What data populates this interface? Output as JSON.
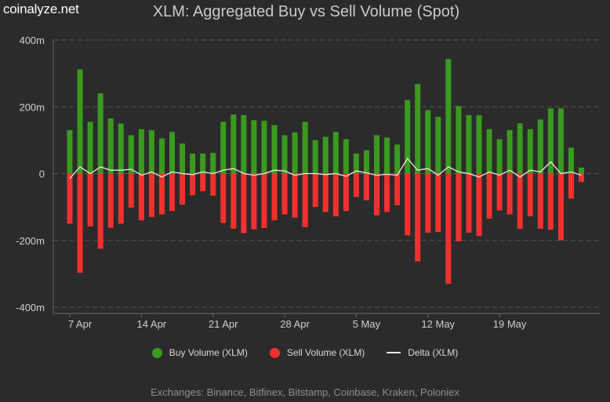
{
  "brand": "coinalyze.net",
  "title": "XLM: Aggregated Buy vs Sell Volume (Spot)",
  "legend": {
    "buy": "Buy Volume (XLM)",
    "sell": "Sell Volume (XLM)",
    "delta": "Delta (XLM)"
  },
  "footer": "Exchanges: Binance, Bitfinex, Bitstamp, Coinbase, Kraken, Poloniex",
  "colors": {
    "buy": "#3a9a1e",
    "sell": "#f2312f",
    "delta": "#e8e8e8",
    "grid": "#555555",
    "background": "#2b2b2b"
  },
  "chart_data": {
    "type": "bar",
    "title": "XLM: Aggregated Buy vs Sell Volume (Spot)",
    "ylim": [
      -400,
      400
    ],
    "yticks": [
      400,
      200,
      0,
      -200,
      -400
    ],
    "ytick_labels": [
      "400m",
      "200m",
      "0",
      "-200m",
      "-400m"
    ],
    "xtick_labels": [
      "7 Apr",
      "14 Apr",
      "21 Apr",
      "28 Apr",
      "5 May",
      "12 May",
      "19 May"
    ],
    "xtick_index": [
      0,
      7,
      14,
      21,
      28,
      35,
      42
    ],
    "first_date": "2024-04-06",
    "grid": true,
    "legend_position": "bottom",
    "series": [
      {
        "name": "Buy Volume (XLM)",
        "values": [
          130,
          312,
          155,
          240,
          165,
          150,
          115,
          133,
          130,
          105,
          125,
          90,
          60,
          60,
          62,
          155,
          177,
          175,
          160,
          158,
          145,
          115,
          123,
          155,
          100,
          110,
          125,
          103,
          60,
          70,
          115,
          108,
          87,
          220,
          268,
          190,
          170,
          343,
          202,
          175,
          175,
          133,
          103,
          130,
          150,
          133,
          162,
          195,
          195,
          78,
          18
        ]
      },
      {
        "name": "Sell Volume (XLM)",
        "values": [
          -150,
          -297,
          -158,
          -225,
          -162,
          -150,
          -102,
          -140,
          -130,
          -122,
          -112,
          -93,
          -65,
          -53,
          -66,
          -148,
          -165,
          -178,
          -167,
          -163,
          -140,
          -122,
          -132,
          -160,
          -100,
          -115,
          -128,
          -112,
          -70,
          -80,
          -125,
          -115,
          -95,
          -185,
          -263,
          -177,
          -175,
          -330,
          -203,
          -177,
          -187,
          -135,
          -110,
          -122,
          -165,
          -128,
          -165,
          -168,
          -200,
          -75,
          -25
        ]
      },
      {
        "name": "Delta (XLM)",
        "values": [
          -15,
          20,
          0,
          20,
          10,
          10,
          13,
          -5,
          5,
          -10,
          5,
          0,
          -3,
          5,
          0,
          10,
          15,
          0,
          -5,
          0,
          10,
          8,
          -5,
          0,
          0,
          -3,
          0,
          -8,
          8,
          2,
          -5,
          -2,
          -5,
          45,
          10,
          15,
          -5,
          20,
          5,
          0,
          -10,
          5,
          -5,
          10,
          -10,
          10,
          5,
          35,
          0,
          5,
          -5
        ]
      }
    ]
  }
}
